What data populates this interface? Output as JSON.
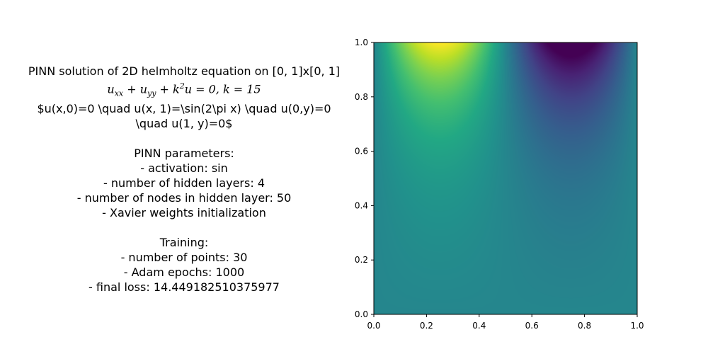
{
  "description": {
    "title_line": "PINN solution of 2D helmholtz equation on [0, 1]x[0, 1]",
    "equation_line": "u_xx + u_yy + k^2 u = 0, k = 15",
    "boundary_line_1": "$u(x,0)=0 \\quad u(x, 1)=\\sin(2\\pi x) \\quad u(0,y)=0",
    "boundary_line_2": "\\quad u(1, y)=0$",
    "pinn_header": "PINN parameters:",
    "pinn_params": [
      "- activation: sin",
      "- number of hidden layers: 4",
      "- number of nodes in hidden layer: 50",
      "- Xavier weights initialization"
    ],
    "training_header": "Training:",
    "training_params": [
      "- number of points: 30",
      "- Adam epochs: 1000",
      "- final loss: 14.449182510375977"
    ]
  },
  "chart_data": {
    "type": "heatmap",
    "colormap": "viridis",
    "xlim": [
      0.0,
      1.0
    ],
    "ylim": [
      0.0,
      1.0
    ],
    "x_ticks": [
      "0.0",
      "0.2",
      "0.4",
      "0.6",
      "0.8",
      "1.0"
    ],
    "y_ticks": [
      "0.0",
      "0.2",
      "0.4",
      "0.6",
      "0.8",
      "1.0"
    ],
    "field": "u(x, y) ≈ 0.05 + sin(2πx)·(y^4 + 0.25·y)",
    "title": "",
    "xlabel": "",
    "ylabel": ""
  }
}
